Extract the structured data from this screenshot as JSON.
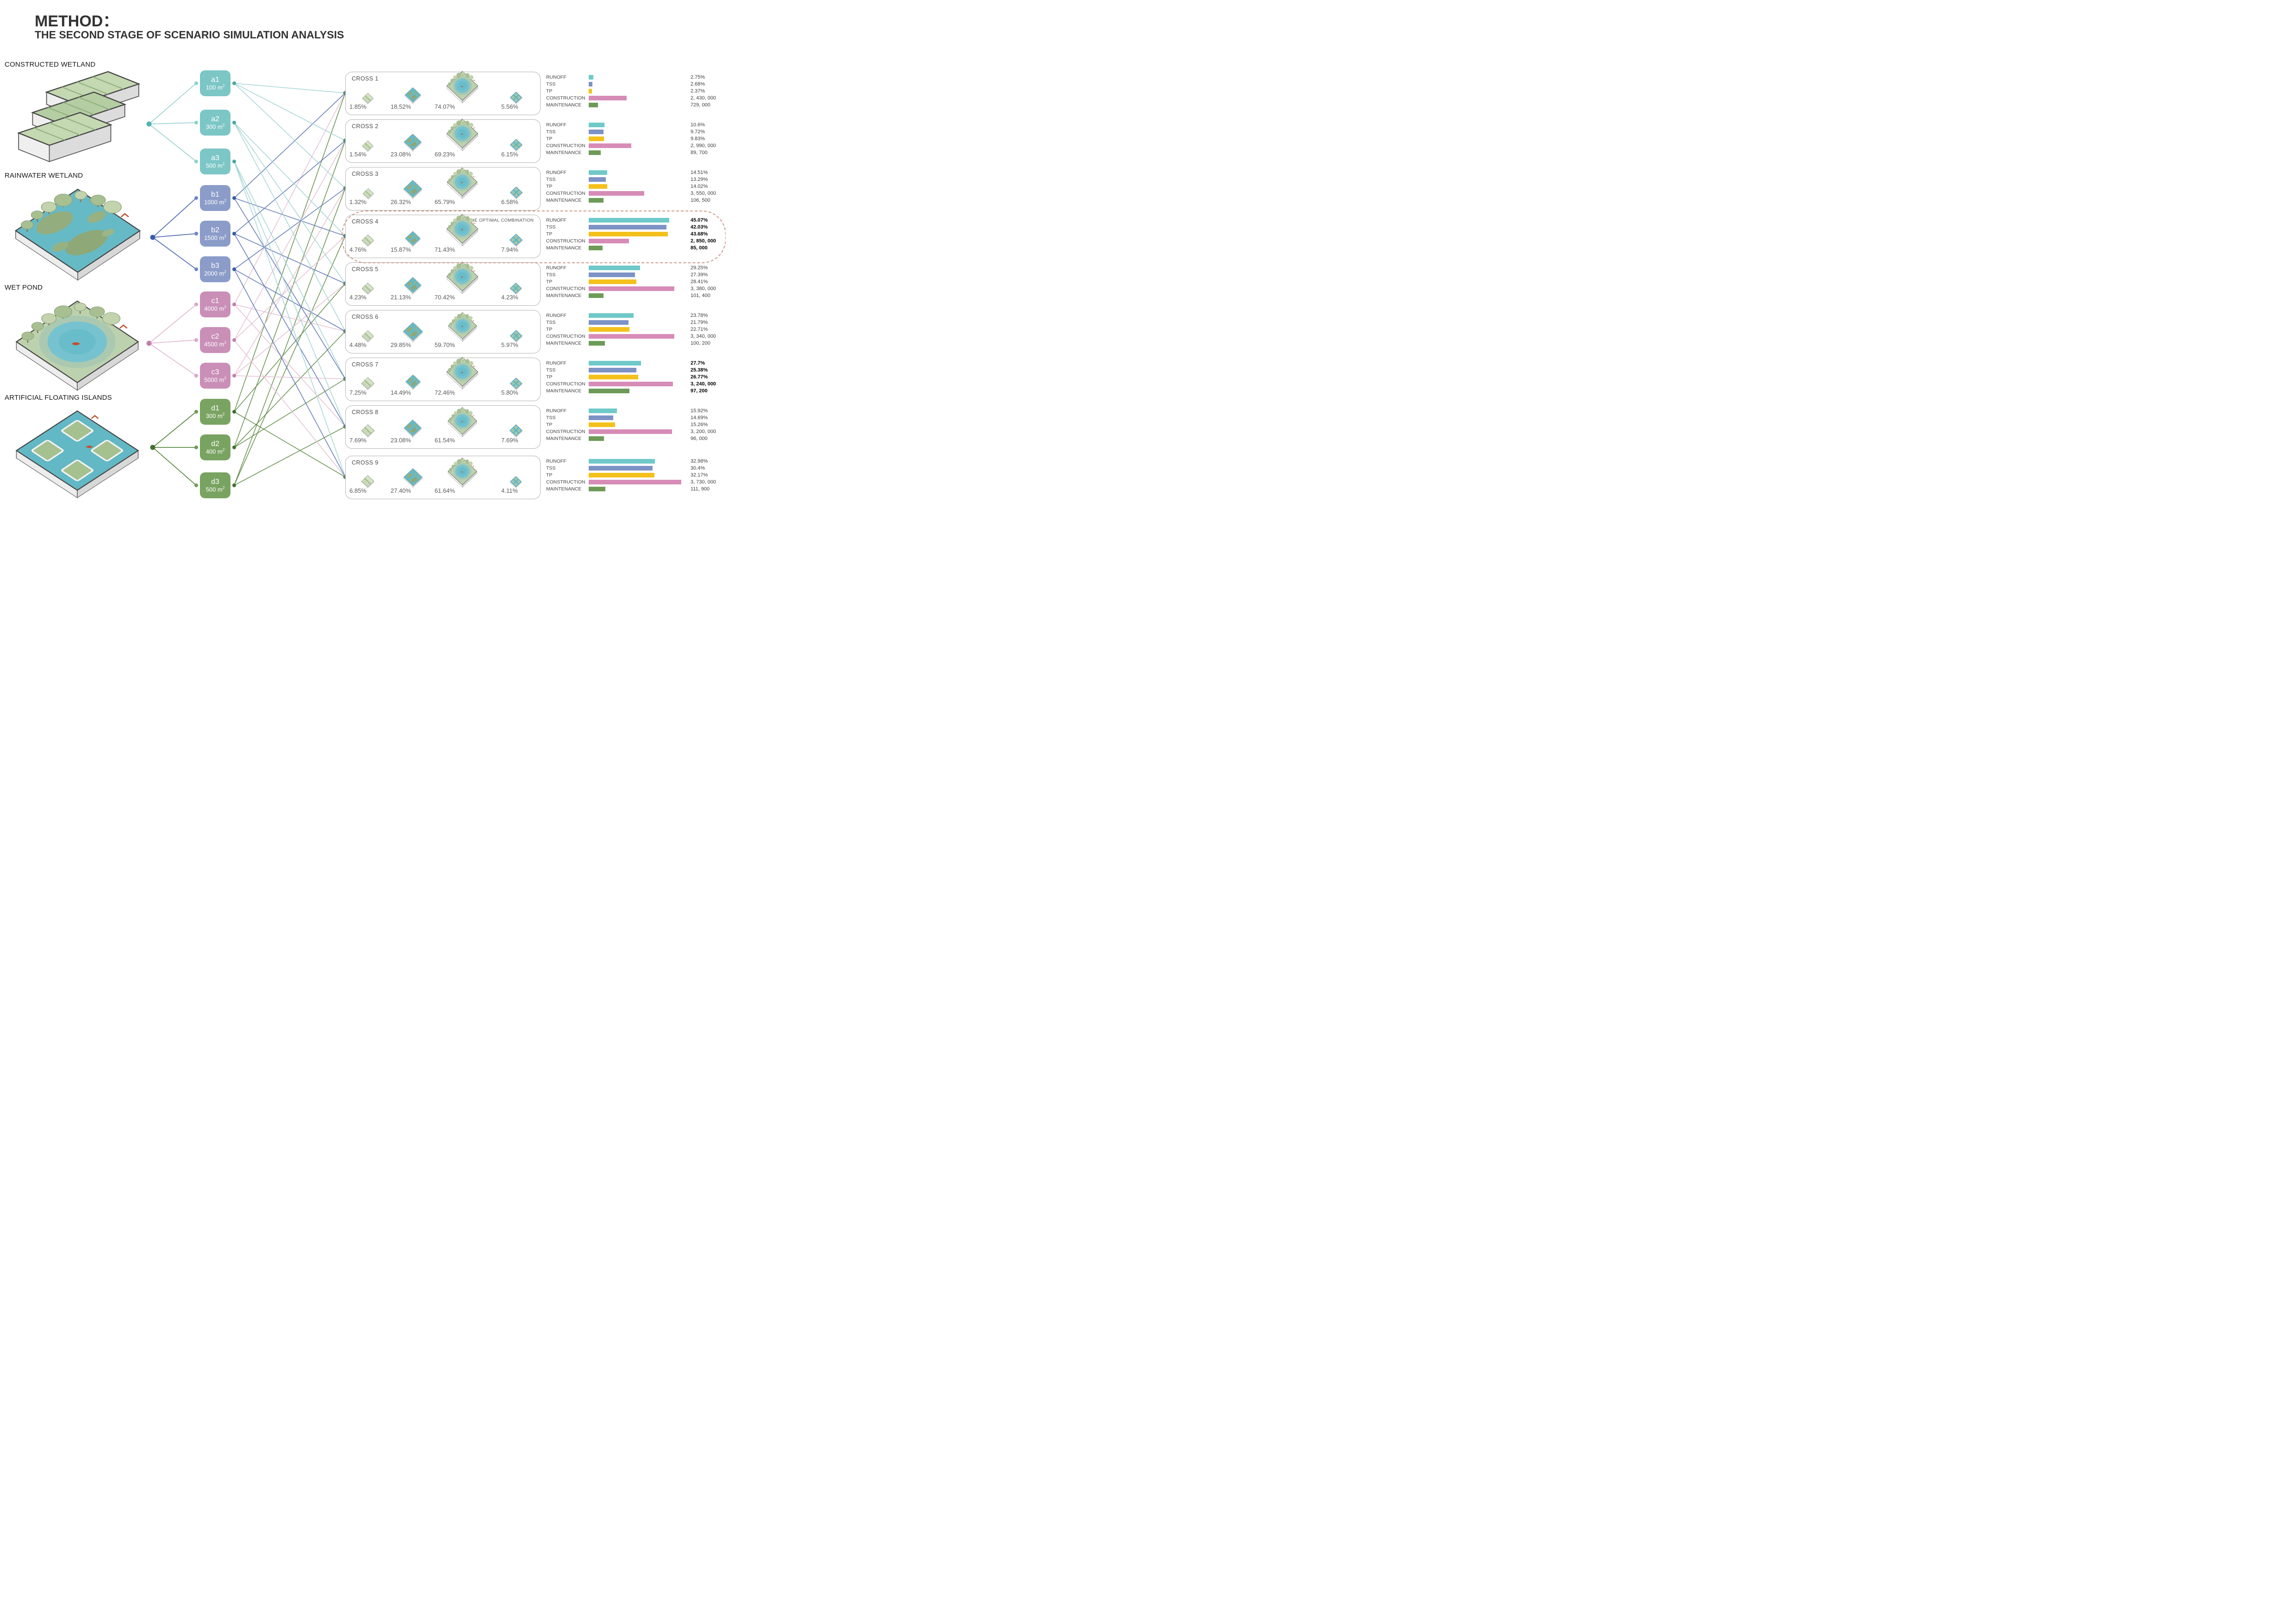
{
  "title": {
    "line1": "METHOD：",
    "line2": "THE SECOND STAGE OF SCENARIO SIMULATION ANALYSIS"
  },
  "optimal_label": "THE OPTIMAL COMBINATION",
  "metric_labels": [
    "RUNOFF",
    "TSS",
    "TP",
    "CONSTRUCTION",
    "MAINTENANCE"
  ],
  "area_unit": "m²",
  "bar_colors": {
    "runoff": "#6fc9c9",
    "tss": "#7d92c5",
    "tp": "#f4c11c",
    "construction": "#d78cb7",
    "maintenance": "#6d9b57"
  },
  "groups": [
    {
      "key": "a",
      "label": "CONSTRUCTED WETLAND",
      "type": "constructed-wetland",
      "box_color": "#7cc6c6",
      "line_color": "#9ed3d3",
      "hub_color": "#54b3b3",
      "left_dot_color": "#8fd0d0",
      "source_dot_color": "#49a5a5",
      "nodes": [
        {
          "id": "a1",
          "area": "100"
        },
        {
          "id": "a2",
          "area": "300"
        },
        {
          "id": "a3",
          "area": "500"
        }
      ]
    },
    {
      "key": "b",
      "label": "RAINWATER WETLAND",
      "type": "rainwater-wetland",
      "box_color": "#8b9cc9",
      "line_color": "#5570b2",
      "hub_color": "#3a5ca8",
      "left_dot_color": "#6d86c2",
      "source_dot_color": "#3a5ca8",
      "nodes": [
        {
          "id": "b1",
          "area": "1000"
        },
        {
          "id": "b2",
          "area": "1500"
        },
        {
          "id": "b3",
          "area": "2000"
        }
      ]
    },
    {
      "key": "c",
      "label": "WET POND",
      "type": "wet-pond",
      "box_color": "#c98fb7",
      "line_color": "#e3bcd2",
      "hub_color": "#c27fae",
      "left_dot_color": "#d9a5c6",
      "source_dot_color": "#c27fae",
      "nodes": [
        {
          "id": "c1",
          "area": "4000"
        },
        {
          "id": "c2",
          "area": "4500"
        },
        {
          "id": "c3",
          "area": "5000"
        }
      ]
    },
    {
      "key": "d",
      "label": "ARTIFICIAL FLOATING ISLANDS",
      "type": "floating-islands",
      "box_color": "#79a361",
      "line_color": "#5d8a42",
      "hub_color": "#41702e",
      "left_dot_color": "#6f9b55",
      "source_dot_color": "#41702e",
      "nodes": [
        {
          "id": "d1",
          "area": "300"
        },
        {
          "id": "d2",
          "area": "400"
        },
        {
          "id": "d3",
          "area": "500"
        }
      ]
    }
  ],
  "thumb_types": [
    "constructed-wetland",
    "rainwater-wetland",
    "wet-pond",
    "floating-islands"
  ],
  "crosses": [
    {
      "name": "CROSS 1",
      "combo": [
        "a1",
        "b1",
        "c1",
        "d1"
      ],
      "pcts": [
        "1.85%",
        "18.52%",
        "74.07%",
        "5.56%"
      ],
      "values": [
        "2.75%",
        "2.68%",
        "2.37%",
        "2, 430, 000",
        "729, 000"
      ],
      "bars": [
        0.05,
        0.04,
        0.033,
        0.41,
        0.1
      ],
      "optimal": false,
      "bold": false
    },
    {
      "name": "CROSS 2",
      "combo": [
        "a1",
        "b2",
        "c2",
        "d2"
      ],
      "pcts": [
        "1.54%",
        "23.08%",
        "69.23%",
        "6.15%"
      ],
      "values": [
        "10.6%",
        "9.72%",
        "9.83%",
        "2, 990, 000",
        "89, 700"
      ],
      "bars": [
        0.17,
        0.16,
        0.165,
        0.46,
        0.13
      ],
      "optimal": false,
      "bold": false
    },
    {
      "name": "CROSS 3",
      "combo": [
        "a1",
        "b3",
        "c3",
        "d3"
      ],
      "pcts": [
        "1.32%",
        "26.32%",
        "65.79%",
        "6.58%"
      ],
      "values": [
        "14.51%",
        "13.29%",
        "14.02%",
        "3, 550, 000",
        "106, 500"
      ],
      "bars": [
        0.2,
        0.185,
        0.2,
        0.6,
        0.16
      ],
      "optimal": false,
      "bold": false
    },
    {
      "name": "CROSS 4",
      "combo": [
        "a2",
        "b1",
        "c2",
        "d3"
      ],
      "pcts": [
        "4.76%",
        "15.87%",
        "71.43%",
        "7.94%"
      ],
      "values": [
        "45.07%",
        "42.03%",
        "43.68%",
        "2, 850, 000",
        "85, 000"
      ],
      "bars": [
        0.87,
        0.84,
        0.855,
        0.435,
        0.15
      ],
      "optimal": true,
      "bold": true
    },
    {
      "name": "CROSS 5",
      "combo": [
        "a2",
        "b2",
        "c3",
        "d1"
      ],
      "pcts": [
        "4.23%",
        "21.13%",
        "70.42%",
        "4.23%"
      ],
      "values": [
        "29.25%",
        "27.39%",
        "28.41%",
        "3, 380, 000",
        "101, 400"
      ],
      "bars": [
        0.555,
        0.5,
        0.515,
        0.925,
        0.16
      ],
      "optimal": false,
      "bold": false
    },
    {
      "name": "CROSS 6",
      "combo": [
        "a2",
        "b3",
        "c1",
        "d2"
      ],
      "pcts": [
        "4.48%",
        "29.85%",
        "59.70%",
        "5.97%"
      ],
      "values": [
        "23.78%",
        "21.79%",
        "22.71%",
        "3, 340, 000",
        "100, 200"
      ],
      "bars": [
        0.485,
        0.43,
        0.44,
        0.925,
        0.175
      ],
      "optimal": false,
      "bold": false
    },
    {
      "name": "CROSS 7",
      "combo": [
        "a3",
        "b1",
        "c3",
        "d2"
      ],
      "pcts": [
        "7.25%",
        "14.49%",
        "72.46%",
        "5.80%"
      ],
      "values": [
        "27.7%",
        "25.38%",
        "26.77%",
        "3, 240, 000",
        "97, 200"
      ],
      "bars": [
        0.565,
        0.515,
        0.535,
        0.91,
        0.44
      ],
      "optimal": false,
      "bold": true
    },
    {
      "name": "CROSS 8",
      "combo": [
        "a3",
        "b2",
        "c1",
        "d3"
      ],
      "pcts": [
        "7.69%",
        "23.08%",
        "61.54%",
        "7.69%"
      ],
      "values": [
        "15.92%",
        "14.69%",
        "15.26%",
        "3, 200, 000",
        "96, 000"
      ],
      "bars": [
        0.305,
        0.265,
        0.285,
        0.9,
        0.165
      ],
      "optimal": false,
      "bold": false
    },
    {
      "name": "CROSS 9",
      "combo": [
        "a3",
        "b3",
        "c2",
        "d1"
      ],
      "pcts": [
        "6.85%",
        "27.40%",
        "61.64%",
        "4.11%"
      ],
      "values": [
        "32.98%",
        "30.4%",
        "32.17%",
        "3, 730, 000",
        "111, 900"
      ],
      "bars": [
        0.715,
        0.69,
        0.71,
        1.0,
        0.18
      ],
      "optimal": false,
      "bold": false
    }
  ],
  "chart_data": {
    "type": "bar",
    "legend": [
      "RUNOFF",
      "TSS",
      "TP",
      "CONSTRUCTION",
      "MAINTENANCE"
    ],
    "node_areas_m2": {
      "a1": 100,
      "a2": 300,
      "a3": 500,
      "b1": 1000,
      "b2": 1500,
      "b3": 2000,
      "c1": 4000,
      "c2": 4500,
      "c3": 5000,
      "d1": 300,
      "d2": 400,
      "d3": 500
    },
    "rows": [
      {
        "name": "CROSS 1",
        "combination": [
          "a1",
          "b1",
          "c1",
          "d1"
        ],
        "area_share_pct": [
          1.85,
          18.52,
          74.07,
          5.56
        ],
        "runoff_pct": 2.75,
        "tss_pct": 2.68,
        "tp_pct": 2.37,
        "construction": 2430000,
        "maintenance": 729000,
        "optimal": false
      },
      {
        "name": "CROSS 2",
        "combination": [
          "a1",
          "b2",
          "c2",
          "d2"
        ],
        "area_share_pct": [
          1.54,
          23.08,
          69.23,
          6.15
        ],
        "runoff_pct": 10.6,
        "tss_pct": 9.72,
        "tp_pct": 9.83,
        "construction": 2990000,
        "maintenance": 89700,
        "optimal": false
      },
      {
        "name": "CROSS 3",
        "combination": [
          "a1",
          "b3",
          "c3",
          "d3"
        ],
        "area_share_pct": [
          1.32,
          26.32,
          65.79,
          6.58
        ],
        "runoff_pct": 14.51,
        "tss_pct": 13.29,
        "tp_pct": 14.02,
        "construction": 3550000,
        "maintenance": 106500,
        "optimal": false
      },
      {
        "name": "CROSS 4",
        "combination": [
          "a2",
          "b1",
          "c2",
          "d3"
        ],
        "area_share_pct": [
          4.76,
          15.87,
          71.43,
          7.94
        ],
        "runoff_pct": 45.07,
        "tss_pct": 42.03,
        "tp_pct": 43.68,
        "construction": 2850000,
        "maintenance": 85000,
        "optimal": true
      },
      {
        "name": "CROSS 5",
        "combination": [
          "a2",
          "b2",
          "c3",
          "d1"
        ],
        "area_share_pct": [
          4.23,
          21.13,
          70.42,
          4.23
        ],
        "runoff_pct": 29.25,
        "tss_pct": 27.39,
        "tp_pct": 28.41,
        "construction": 3380000,
        "maintenance": 101400,
        "optimal": false
      },
      {
        "name": "CROSS 6",
        "combination": [
          "a2",
          "b3",
          "c1",
          "d2"
        ],
        "area_share_pct": [
          4.48,
          29.85,
          59.7,
          5.97
        ],
        "runoff_pct": 23.78,
        "tss_pct": 21.79,
        "tp_pct": 22.71,
        "construction": 3340000,
        "maintenance": 100200,
        "optimal": false
      },
      {
        "name": "CROSS 7",
        "combination": [
          "a3",
          "b1",
          "c3",
          "d2"
        ],
        "area_share_pct": [
          7.25,
          14.49,
          72.46,
          5.8
        ],
        "runoff_pct": 27.7,
        "tss_pct": 25.38,
        "tp_pct": 26.77,
        "construction": 3240000,
        "maintenance": 97200,
        "optimal": false
      },
      {
        "name": "CROSS 8",
        "combination": [
          "a3",
          "b2",
          "c1",
          "d3"
        ],
        "area_share_pct": [
          7.69,
          23.08,
          61.54,
          7.69
        ],
        "runoff_pct": 15.92,
        "tss_pct": 14.69,
        "tp_pct": 15.26,
        "construction": 3200000,
        "maintenance": 96000,
        "optimal": false
      },
      {
        "name": "CROSS 9",
        "combination": [
          "a3",
          "b3",
          "c2",
          "d1"
        ],
        "area_share_pct": [
          6.85,
          27.4,
          61.64,
          4.11
        ],
        "runoff_pct": 32.98,
        "tss_pct": 30.4,
        "tp_pct": 32.17,
        "construction": 3730000,
        "maintenance": 111900,
        "optimal": false
      }
    ]
  }
}
